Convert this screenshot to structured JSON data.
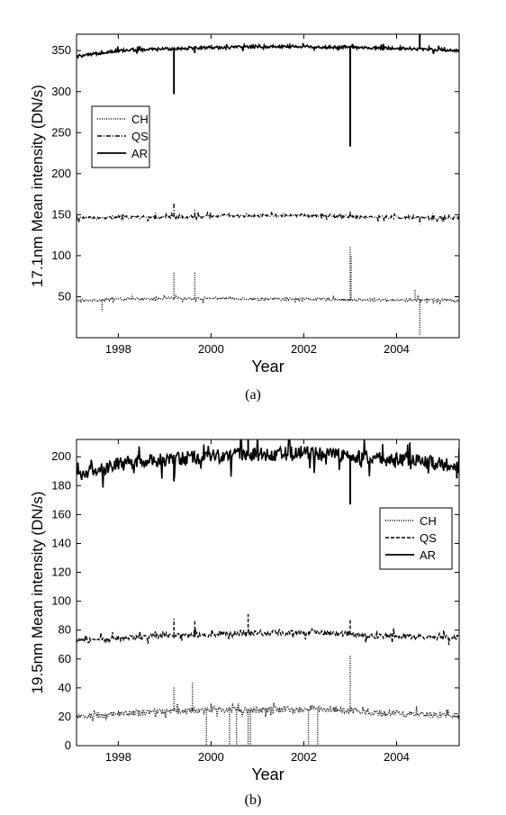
{
  "chart_data": [
    {
      "type": "line",
      "panel_label": "(a)",
      "xlabel": "Year",
      "ylabel": "17.1nm Mean intensity (DN/s)",
      "xlim": [
        1997.1,
        2005.35
      ],
      "ylim": [
        0,
        370
      ],
      "xticks": [
        1998,
        2000,
        2002,
        2004
      ],
      "yticks": [
        50,
        100,
        150,
        200,
        250,
        300,
        350
      ],
      "legend_position": "upper-left",
      "legend": [
        "CH",
        "QS",
        "AR"
      ],
      "series": [
        {
          "name": "CH",
          "style": "dotted",
          "baseline": 46,
          "noise": 1.5,
          "x": [
            1997.1,
            1997.6,
            1998.0,
            1998.5,
            1999.0,
            1999.5,
            2000.0,
            2000.5,
            2001.0,
            2001.5,
            2002.0,
            2002.5,
            2003.0,
            2003.5,
            2004.0,
            2004.5,
            2005.0,
            2005.35
          ],
          "y": [
            45,
            46,
            47,
            47,
            48,
            48,
            48,
            48,
            47,
            47,
            47,
            47,
            46,
            46,
            46,
            46,
            46,
            45
          ],
          "spikes": [
            {
              "x": 1997.65,
              "y": 32
            },
            {
              "x": 1998.3,
              "y": 53
            },
            {
              "x": 1999.2,
              "y": 80
            },
            {
              "x": 1999.65,
              "y": 80
            },
            {
              "x": 2003.0,
              "y": 112
            },
            {
              "x": 2003.02,
              "y": 100
            },
            {
              "x": 2004.4,
              "y": 58
            },
            {
              "x": 2004.5,
              "y": 2
            }
          ]
        },
        {
          "name": "QS",
          "style": "dashdot",
          "baseline": 147,
          "noise": 2,
          "x": [
            1997.1,
            1997.6,
            1998.0,
            1998.5,
            1999.0,
            1999.5,
            2000.0,
            2000.5,
            2001.0,
            2001.5,
            2002.0,
            2002.5,
            2003.0,
            2003.5,
            2004.0,
            2004.5,
            2005.0,
            2005.35
          ],
          "y": [
            146,
            146,
            147,
            147,
            147,
            147,
            148,
            149,
            149,
            149,
            149,
            149,
            148,
            147,
            147,
            146,
            146,
            146
          ],
          "spikes": [
            {
              "x": 1999.2,
              "y": 165
            },
            {
              "x": 1999.65,
              "y": 157
            },
            {
              "x": 2003.0,
              "y": 155
            },
            {
              "x": 2004.5,
              "y": 138
            }
          ]
        },
        {
          "name": "AR",
          "style": "solid",
          "baseline": 352,
          "noise": 1.8,
          "x": [
            1997.1,
            1997.4,
            1997.7,
            1998.0,
            1998.5,
            1999.0,
            1999.5,
            2000.0,
            2000.5,
            2001.0,
            2001.5,
            2002.0,
            2002.5,
            2003.0,
            2003.5,
            2004.0,
            2004.5,
            2005.0,
            2005.35
          ],
          "y": [
            343,
            345,
            348,
            350,
            351,
            352,
            353,
            354,
            354,
            355,
            355,
            355,
            354,
            354,
            353,
            353,
            352,
            351,
            350
          ],
          "spikes": [
            {
              "x": 1999.2,
              "y": 297
            },
            {
              "x": 1999.65,
              "y": 347
            },
            {
              "x": 2003.0,
              "y": 233
            },
            {
              "x": 2004.5,
              "y": 370
            }
          ]
        }
      ]
    },
    {
      "type": "line",
      "panel_label": "(b)",
      "xlabel": "Year",
      "ylabel": "19.5nm Mean intensity (DN/s)",
      "xlim": [
        1997.1,
        2005.35
      ],
      "ylim": [
        0,
        212
      ],
      "xticks": [
        1998,
        2000,
        2002,
        2004
      ],
      "yticks": [
        0,
        20,
        40,
        60,
        80,
        100,
        120,
        140,
        160,
        180,
        200
      ],
      "legend_position": "right",
      "legend": [
        "CH",
        "QS",
        "AR"
      ],
      "series": [
        {
          "name": "CH",
          "style": "dotted",
          "baseline": 22,
          "noise": 2,
          "x": [
            1997.1,
            1997.6,
            1998.0,
            1998.5,
            1999.0,
            1999.5,
            2000.0,
            2000.5,
            2001.0,
            2001.5,
            2002.0,
            2002.5,
            2003.0,
            2003.5,
            2004.0,
            2004.5,
            2005.0,
            2005.35
          ],
          "y": [
            20,
            21,
            22,
            23,
            24,
            24,
            25,
            25,
            25,
            25,
            25,
            25,
            24,
            23,
            22,
            22,
            21,
            21
          ],
          "spikes": [
            {
              "x": 1999.2,
              "y": 41
            },
            {
              "x": 1999.6,
              "y": 44
            },
            {
              "x": 1999.9,
              "y": 0
            },
            {
              "x": 2000.4,
              "y": 0
            },
            {
              "x": 2000.55,
              "y": 0
            },
            {
              "x": 2000.8,
              "y": 0
            },
            {
              "x": 2000.85,
              "y": 0
            },
            {
              "x": 2002.1,
              "y": 0
            },
            {
              "x": 2002.3,
              "y": 0
            },
            {
              "x": 2003.0,
              "y": 63
            }
          ]
        },
        {
          "name": "QS",
          "style": "dashed",
          "baseline": 76,
          "noise": 1.8,
          "x": [
            1997.1,
            1997.6,
            1998.0,
            1998.5,
            1999.0,
            1999.5,
            2000.0,
            2000.5,
            2001.0,
            2001.5,
            2002.0,
            2002.5,
            2003.0,
            2003.5,
            2004.0,
            2004.5,
            2005.0,
            2005.35
          ],
          "y": [
            73,
            73,
            74,
            75,
            76,
            76,
            77,
            78,
            78,
            78,
            78,
            78,
            77,
            76,
            76,
            75,
            75,
            75
          ],
          "spikes": [
            {
              "x": 1999.2,
              "y": 88
            },
            {
              "x": 1999.65,
              "y": 87
            },
            {
              "x": 2000.8,
              "y": 91
            },
            {
              "x": 2003.0,
              "y": 87
            }
          ]
        },
        {
          "name": "AR",
          "style": "solid",
          "baseline": 198,
          "noise": 5,
          "x": [
            1997.1,
            1997.4,
            1997.7,
            1998.0,
            1998.5,
            1999.0,
            1999.5,
            2000.0,
            2000.5,
            2001.0,
            2001.5,
            2002.0,
            2002.5,
            2003.0,
            2003.5,
            2004.0,
            2004.5,
            2005.0,
            2005.35
          ],
          "y": [
            188,
            190,
            193,
            195,
            197,
            198,
            199,
            200,
            201,
            202,
            202,
            203,
            202,
            200,
            199,
            198,
            197,
            195,
            193
          ],
          "spikes": [
            {
              "x": 1999.2,
              "y": 183
            },
            {
              "x": 2000.8,
              "y": 212
            },
            {
              "x": 2003.0,
              "y": 167
            },
            {
              "x": 2005.3,
              "y": 185
            }
          ]
        }
      ]
    }
  ]
}
